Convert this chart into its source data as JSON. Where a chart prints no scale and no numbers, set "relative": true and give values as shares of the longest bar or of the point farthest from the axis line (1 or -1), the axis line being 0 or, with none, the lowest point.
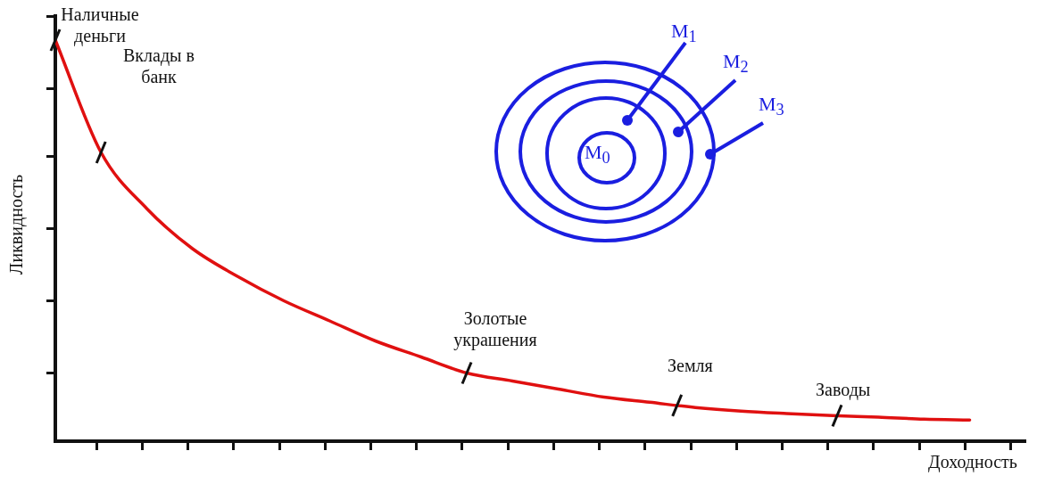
{
  "chart_data": {
    "type": "line",
    "relative": true,
    "xlabel": "Доходность",
    "ylabel": "Ликвидность",
    "categories": [
      null,
      null,
      null,
      null,
      null,
      null,
      null,
      null,
      null,
      null,
      null,
      null,
      null,
      null,
      null,
      null,
      null,
      null,
      null,
      null,
      null
    ],
    "series": [
      {
        "color": "#e01010",
        "values": [
          1,
          0.72,
          0.58,
          0.48,
          0.41,
          0.35,
          0.3,
          0.25,
          0.21,
          0.17,
          0.15,
          0.13,
          0.11,
          0.097,
          0.084,
          0.075,
          0.069,
          0.064,
          0.06,
          0.055,
          0.053
        ]
      }
    ],
    "marker": "none",
    "line_style": "solid",
    "grid": false,
    "legend": false,
    "tick_labels": false,
    "annotations": [
      "Наличные деньги",
      "Вклады в банк",
      "Золотые украшения",
      "Земля",
      "Заводы",
      "M$_{0}$",
      "M$_{1}$",
      "M$_{2}$",
      "M$_{3}$"
    ]
  }
}
